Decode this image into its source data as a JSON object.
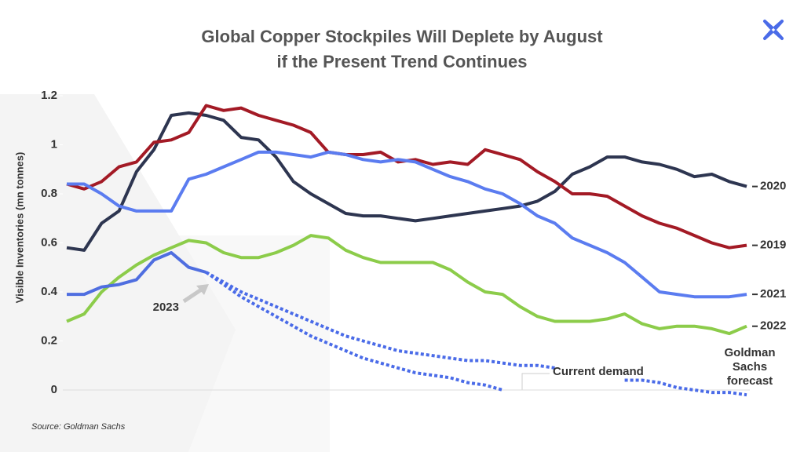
{
  "chart_data": {
    "type": "line",
    "title": "Global Copper Stockpiles Will Deplete by August",
    "subtitle": "if the Present Trend Continues",
    "y_label": "Visible Inventories (mn tonnes)",
    "source": "Source: Goldman Sachs",
    "categories": [
      null,
      null,
      null,
      null,
      null,
      null,
      null,
      null,
      null,
      null,
      null,
      null,
      null,
      null,
      null,
      null,
      null,
      null,
      null,
      null,
      null,
      null,
      null,
      null,
      null,
      null,
      null,
      null,
      null,
      null,
      null,
      null,
      null,
      null,
      null,
      null,
      null,
      null,
      null,
      null
    ],
    "ylim": [
      -0.05,
      1.25
    ],
    "yticks": [
      0,
      0.2,
      0.4,
      0.6,
      0.8,
      1,
      1.2
    ],
    "grid": false,
    "series": [
      {
        "name": "2020",
        "color": "#2d3550",
        "values": [
          0.58,
          0.57,
          0.68,
          0.73,
          0.89,
          0.98,
          1.12,
          1.13,
          1.12,
          1.1,
          1.03,
          1.02,
          0.95,
          0.85,
          0.8,
          0.76,
          0.72,
          0.71,
          0.71,
          0.7,
          0.69,
          0.7,
          0.71,
          0.72,
          0.73,
          0.74,
          0.75,
          0.77,
          0.81,
          0.88,
          0.91,
          0.95,
          0.95,
          0.93,
          0.92,
          0.9,
          0.87,
          0.88,
          0.85,
          0.83
        ]
      },
      {
        "name": "2019",
        "color": "#a31a25",
        "values": [
          0.84,
          0.82,
          0.85,
          0.91,
          0.93,
          1.01,
          1.02,
          1.05,
          1.16,
          1.14,
          1.15,
          1.12,
          1.1,
          1.08,
          1.05,
          0.97,
          0.96,
          0.96,
          0.97,
          0.93,
          0.94,
          0.92,
          0.93,
          0.92,
          0.98,
          0.96,
          0.94,
          0.89,
          0.85,
          0.8,
          0.8,
          0.79,
          0.75,
          0.71,
          0.68,
          0.66,
          0.63,
          0.6,
          0.58,
          0.59
        ]
      },
      {
        "name": "2021",
        "color": "#5b7cf0",
        "values": [
          0.84,
          0.84,
          0.8,
          0.75,
          0.73,
          0.73,
          0.73,
          0.86,
          0.88,
          0.91,
          0.94,
          0.97,
          0.97,
          0.96,
          0.95,
          0.97,
          0.96,
          0.94,
          0.93,
          0.94,
          0.93,
          0.9,
          0.87,
          0.85,
          0.82,
          0.8,
          0.76,
          0.71,
          0.68,
          0.62,
          0.59,
          0.56,
          0.52,
          0.46,
          0.4,
          0.39,
          0.38,
          0.38,
          0.38,
          0.39
        ]
      },
      {
        "name": "2022",
        "color": "#8ccc4a",
        "values": [
          0.28,
          0.31,
          0.4,
          0.46,
          0.51,
          0.55,
          0.58,
          0.61,
          0.6,
          0.56,
          0.54,
          0.54,
          0.56,
          0.59,
          0.63,
          0.62,
          0.57,
          0.54,
          0.52,
          0.52,
          0.52,
          0.52,
          0.49,
          0.44,
          0.4,
          0.39,
          0.34,
          0.3,
          0.28,
          0.28,
          0.28,
          0.29,
          0.31,
          0.27,
          0.25,
          0.26,
          0.26,
          0.25,
          0.23,
          0.26
        ]
      },
      {
        "name": "2023",
        "color": "#4f6ee0",
        "values": [
          0.39,
          0.39,
          0.42,
          0.43,
          0.45,
          0.53,
          0.56,
          0.5,
          0.48,
          null,
          null,
          null,
          null,
          null,
          null,
          null,
          null,
          null,
          null,
          null,
          null,
          null,
          null,
          null,
          null,
          null,
          null,
          null,
          null,
          null,
          null,
          null,
          null,
          null,
          null,
          null,
          null,
          null,
          null,
          null
        ]
      },
      {
        "name": "Goldman Sachs forecast",
        "color": "#4a6be8",
        "dashed": true,
        "values": [
          null,
          null,
          null,
          null,
          null,
          null,
          null,
          null,
          0.48,
          0.44,
          0.4,
          0.37,
          0.34,
          0.31,
          0.28,
          0.25,
          0.22,
          0.2,
          0.18,
          0.16,
          0.15,
          0.14,
          0.13,
          0.12,
          0.12,
          0.11,
          0.1,
          0.1,
          0.09,
          null,
          null,
          null,
          0.04,
          0.04,
          0.03,
          0.01,
          0.0,
          -0.01,
          -0.01,
          -0.02
        ]
      },
      {
        "name": "Current demand",
        "color": "#4a6be8",
        "dashed": true,
        "values": [
          null,
          null,
          null,
          null,
          null,
          null,
          null,
          null,
          0.48,
          0.43,
          0.38,
          0.34,
          0.3,
          0.26,
          0.22,
          0.19,
          0.16,
          0.13,
          0.11,
          0.09,
          0.07,
          0.06,
          0.05,
          0.03,
          0.02,
          0.0,
          null,
          null,
          null,
          null,
          null,
          null,
          null,
          null,
          null,
          null,
          null,
          null,
          null,
          null
        ]
      }
    ]
  }
}
